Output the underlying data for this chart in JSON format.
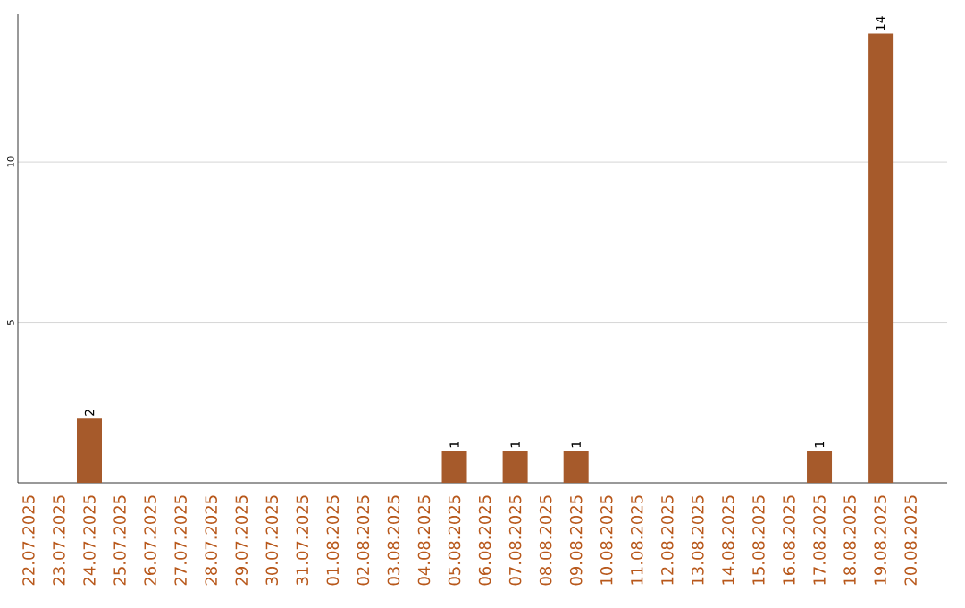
{
  "chart_data": {
    "type": "bar",
    "categories": [
      "22.07.2025",
      "23.07.2025",
      "24.07.2025",
      "25.07.2025",
      "26.07.2025",
      "27.07.2025",
      "28.07.2025",
      "29.07.2025",
      "30.07.2025",
      "31.07.2025",
      "01.08.2025",
      "02.08.2025",
      "03.08.2025",
      "04.08.2025",
      "05.08.2025",
      "06.08.2025",
      "07.08.2025",
      "08.08.2025",
      "09.08.2025",
      "10.08.2025",
      "11.08.2025",
      "12.08.2025",
      "13.08.2025",
      "14.08.2025",
      "15.08.2025",
      "16.08.2025",
      "17.08.2025",
      "18.08.2025",
      "19.08.2025",
      "20.08.2025"
    ],
    "values": [
      0,
      0,
      2,
      0,
      0,
      0,
      0,
      0,
      0,
      0,
      0,
      0,
      0,
      0,
      1,
      0,
      1,
      0,
      1,
      0,
      0,
      0,
      0,
      0,
      0,
      0,
      1,
      0,
      14,
      0
    ],
    "value_labels": [
      null,
      null,
      "2",
      null,
      null,
      null,
      null,
      null,
      null,
      null,
      null,
      null,
      null,
      null,
      "1",
      null,
      "1",
      null,
      "1",
      null,
      null,
      null,
      null,
      null,
      null,
      null,
      "1",
      null,
      "14",
      null
    ],
    "color": "#a65a2b",
    "ylim": [
      0,
      14.6
    ],
    "yticks": [
      5,
      10
    ],
    "grid": "y"
  }
}
